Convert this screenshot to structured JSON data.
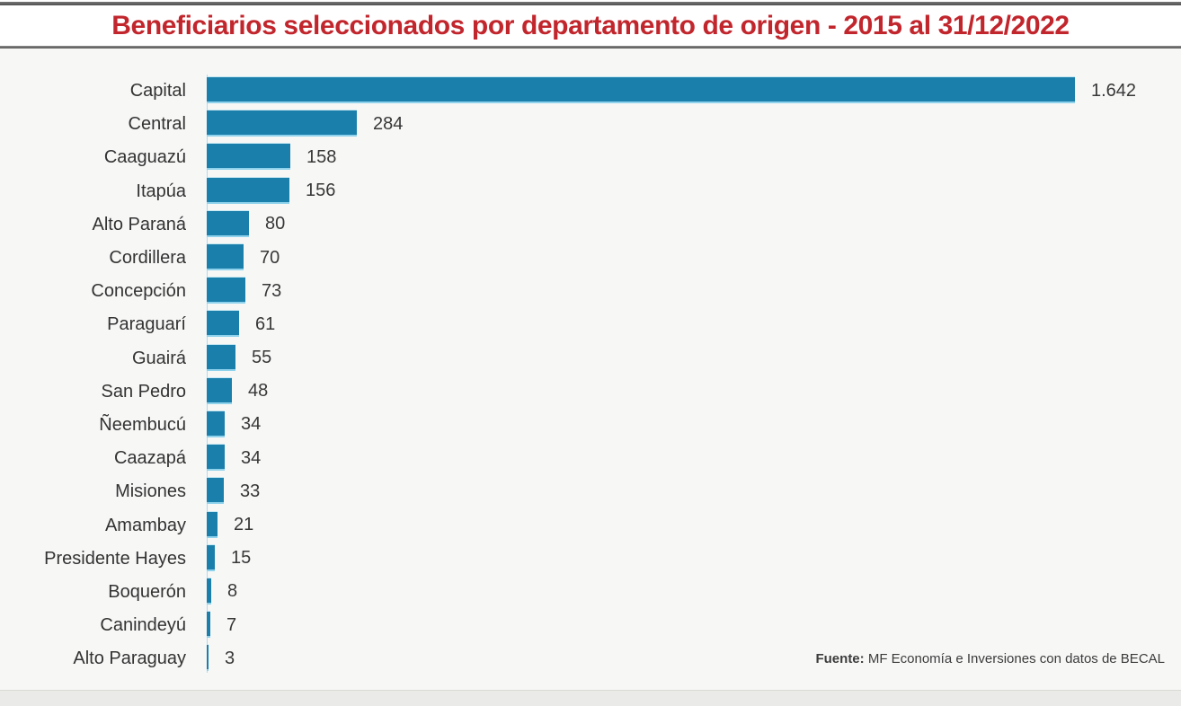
{
  "title": "Beneficiarios seleccionados por departamento de origen - 2015 al 31/12/2022",
  "source": {
    "prefix": "Fuente:",
    "text": " MF Economía e Inversiones con datos de BECAL"
  },
  "colors": {
    "bar": "#1b7fab",
    "bar_edge": "#8ed2ec",
    "title": "#c2262d",
    "chart_background": "#f7f7f6",
    "title_band_background": "#ffffff",
    "rule": "#565656",
    "text": "#333333"
  },
  "chart_data": {
    "type": "bar",
    "orientation": "horizontal",
    "title": "Beneficiarios seleccionados por departamento de origen - 2015 al 31/12/2022",
    "xlabel": "",
    "ylabel": "",
    "xlim": [
      0,
      1642
    ],
    "grid": false,
    "legend": false,
    "source": "Fuente: MF Economía e Inversiones con datos de BECAL",
    "categories": [
      "Capital",
      "Central",
      "Caaguazú",
      "Itapúa",
      "Alto Paraná",
      "Cordillera",
      "Concepción",
      "Paraguarí",
      "Guairá",
      "San Pedro",
      "Ñeembucú",
      "Caazapá",
      "Misiones",
      "Amambay",
      "Presidente Hayes",
      "Boquerón",
      "Canindeyú",
      "Alto Paraguay"
    ],
    "values": [
      1642,
      284,
      158,
      156,
      80,
      70,
      73,
      61,
      55,
      48,
      34,
      34,
      33,
      21,
      15,
      8,
      7,
      3
    ],
    "value_labels": [
      "1.642",
      "284",
      "158",
      "156",
      "80",
      "70",
      "73",
      "61",
      "55",
      "48",
      "34",
      "34",
      "33",
      "21",
      "15",
      "8",
      "7",
      "3"
    ]
  }
}
